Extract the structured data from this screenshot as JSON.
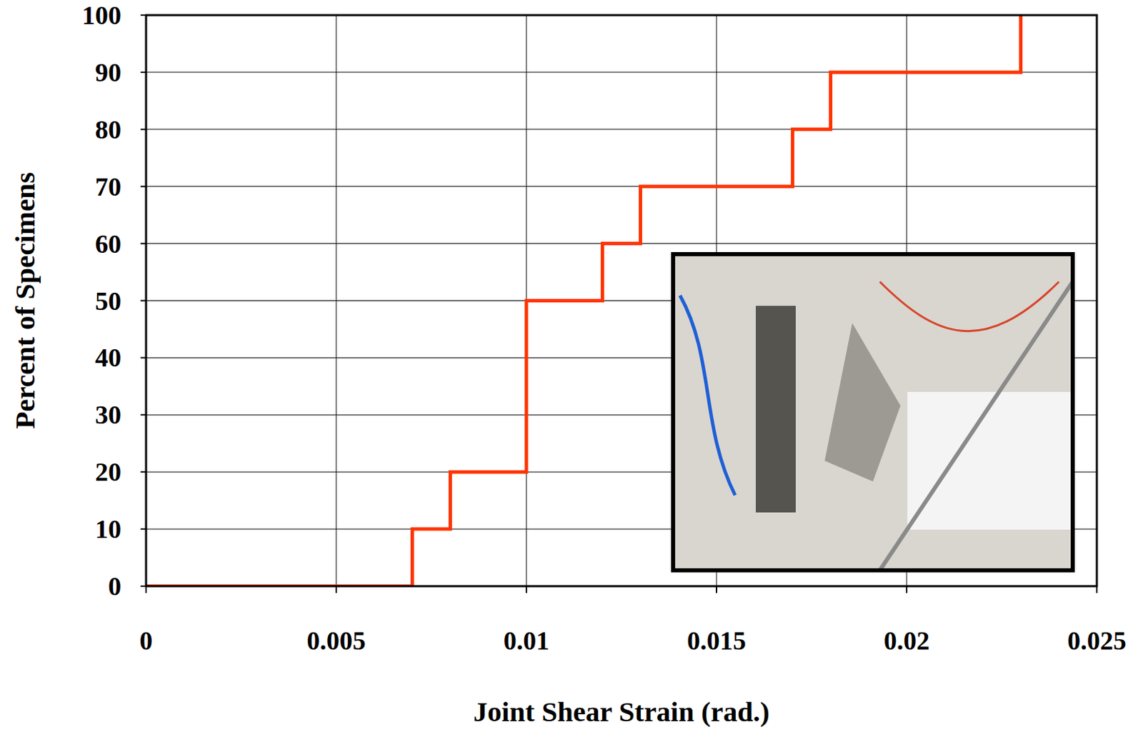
{
  "chart_data": {
    "type": "line",
    "line_style": "step",
    "color": "#ff3300",
    "x_label": "Joint Shear Strain (rad.)",
    "y_label": "Percent of Specimens",
    "x": [
      0,
      0.007,
      0.008,
      0.01,
      0.012,
      0.013,
      0.017,
      0.018,
      0.023
    ],
    "values": [
      0,
      10,
      20,
      50,
      60,
      70,
      80,
      90,
      100
    ],
    "xlim": [
      0,
      0.025
    ],
    "xticks": [
      0,
      0.005,
      0.01,
      0.015,
      0.02,
      0.025
    ],
    "ylim": [
      0,
      100
    ],
    "yticks": [
      0,
      10,
      20,
      30,
      40,
      50,
      60,
      70,
      80,
      90,
      100
    ],
    "grid": true
  }
}
